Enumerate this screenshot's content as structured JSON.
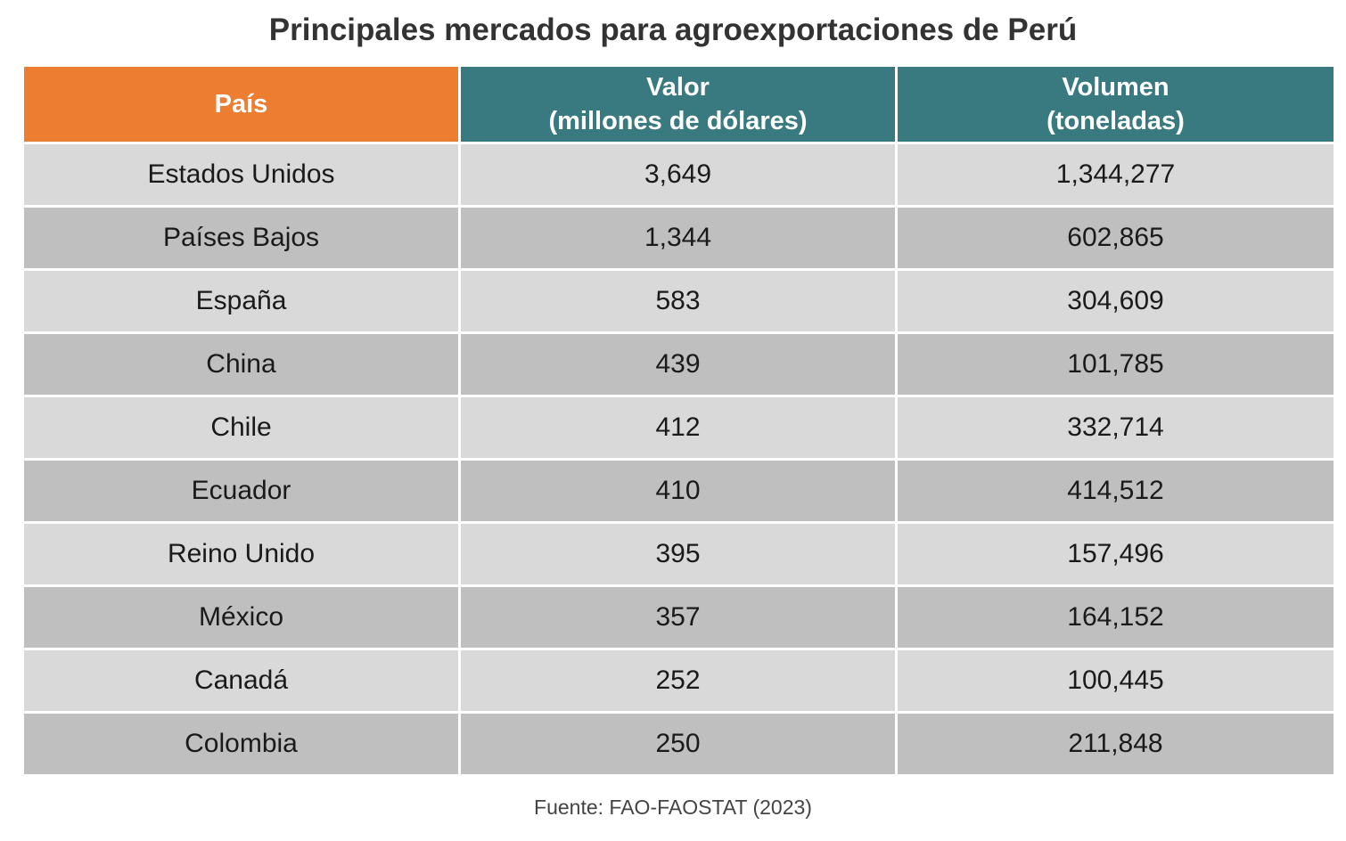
{
  "chart_data": {
    "type": "table",
    "title": "Principales mercados para agroexportaciones de Perú",
    "columns": [
      {
        "key": "pais",
        "label_lines": [
          "País"
        ],
        "color": "#ED7D31"
      },
      {
        "key": "valor",
        "label_lines": [
          "Valor",
          "(millones de dólares)"
        ],
        "color": "#387A80"
      },
      {
        "key": "volumen",
        "label_lines": [
          "Volumen",
          "(toneladas)"
        ],
        "color": "#387A80"
      }
    ],
    "rows": [
      [
        "Estados Unidos",
        "3,649",
        "1,344,277"
      ],
      [
        "Países Bajos",
        "1,344",
        "602,865"
      ],
      [
        "España",
        "583",
        "304,609"
      ],
      [
        "China",
        "439",
        "101,785"
      ],
      [
        "Chile",
        "412",
        "332,714"
      ],
      [
        "Ecuador",
        "410",
        "414,512"
      ],
      [
        "Reino Unido",
        "395",
        "157,496"
      ],
      [
        "México",
        "357",
        "164,152"
      ],
      [
        "Canadá",
        "252",
        "100,445"
      ],
      [
        "Colombia",
        "250",
        "211,848"
      ]
    ],
    "row_colors": [
      "#D9D9D9",
      "#BFBFBF"
    ],
    "source": "Fuente: FAO-FAOSTAT (2023)"
  }
}
